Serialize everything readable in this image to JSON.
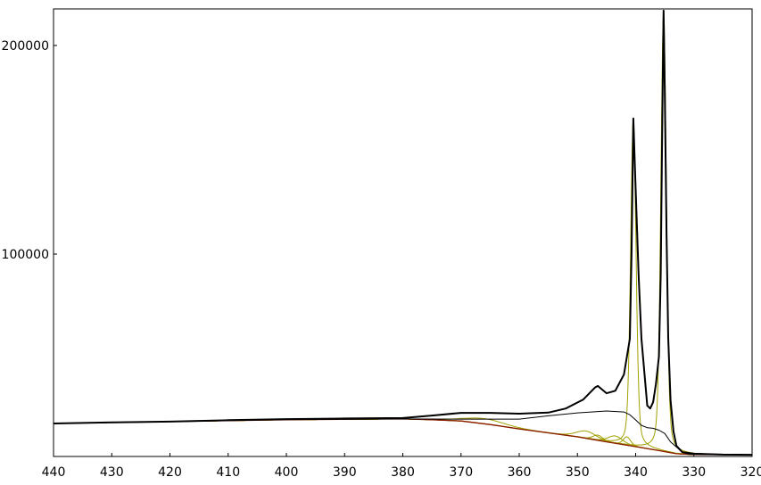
{
  "chart_data": {
    "type": "line",
    "title": "",
    "xlabel": "",
    "ylabel": "",
    "xlim": [
      440,
      320
    ],
    "x_reversed": true,
    "ylim": [
      3000,
      217500
    ],
    "grid": false,
    "xticks": [
      440,
      430,
      420,
      410,
      400,
      390,
      380,
      370,
      360,
      350,
      340,
      330,
      320
    ],
    "yticks": [
      100000,
      200000
    ],
    "colors": {
      "measured": "#000000",
      "envelope": "#000000",
      "component": "#a0a000",
      "background": "#8b1a00"
    },
    "measured": {
      "x": [
        440,
        430,
        420,
        410,
        400,
        390,
        380,
        375,
        370,
        365,
        360,
        355,
        352,
        349,
        347,
        346.5,
        345,
        343.5,
        342,
        341,
        340.7,
        340.4,
        340.1,
        339.5,
        339,
        338,
        337.5,
        337,
        336.5,
        336,
        335.7,
        335.4,
        335.2,
        335,
        334.7,
        334.4,
        334,
        333.5,
        333,
        332,
        330,
        325,
        320
      ],
      "y": [
        18800,
        19300,
        19700,
        20400,
        20900,
        21200,
        21400,
        22600,
        23900,
        23900,
        23500,
        24000,
        26000,
        30300,
        36000,
        36800,
        33300,
        34500,
        42300,
        59400,
        100000,
        165000,
        140000,
        90000,
        59400,
        27400,
        26000,
        29000,
        38000,
        50900,
        90000,
        170000,
        216700,
        180000,
        110000,
        60000,
        30000,
        15000,
        8100,
        5100,
        4300,
        3900,
        3800
      ]
    },
    "envelope": {
      "x": [
        440,
        420,
        400,
        380,
        370,
        360,
        355,
        350,
        345,
        342,
        341,
        340,
        339,
        338,
        337,
        336,
        335,
        334,
        333,
        332,
        331,
        330,
        320
      ],
      "y": [
        18800,
        19700,
        20700,
        21000,
        20900,
        20900,
        22500,
        23900,
        24800,
        24300,
        23000,
        20500,
        17900,
        16800,
        16500,
        15600,
        14000,
        10000,
        7500,
        5000,
        4200,
        4000,
        3800
      ]
    },
    "background": {
      "x": [
        440,
        420,
        400,
        380,
        375,
        370,
        365,
        360,
        355,
        350,
        345,
        340,
        336,
        333,
        330,
        320
      ],
      "y": [
        18800,
        19700,
        20600,
        21000,
        20600,
        20000,
        18300,
        16200,
        14300,
        12400,
        10000,
        7700,
        5800,
        4300,
        3900,
        3800
      ]
    },
    "components": [
      {
        "center": 340.4,
        "height": 157000,
        "fwhm": 1.1
      },
      {
        "center": 335.2,
        "height": 211500,
        "fwhm": 1.1
      },
      {
        "center": 348.5,
        "height": 3500,
        "fwhm": 4
      },
      {
        "center": 346.5,
        "height": 2500,
        "fwhm": 2
      },
      {
        "center": 343.5,
        "height": 3500,
        "fwhm": 3
      },
      {
        "center": 341.5,
        "height": 4000,
        "fwhm": 1.5
      },
      {
        "center": 366,
        "height": 2500,
        "fwhm": 8
      }
    ]
  }
}
